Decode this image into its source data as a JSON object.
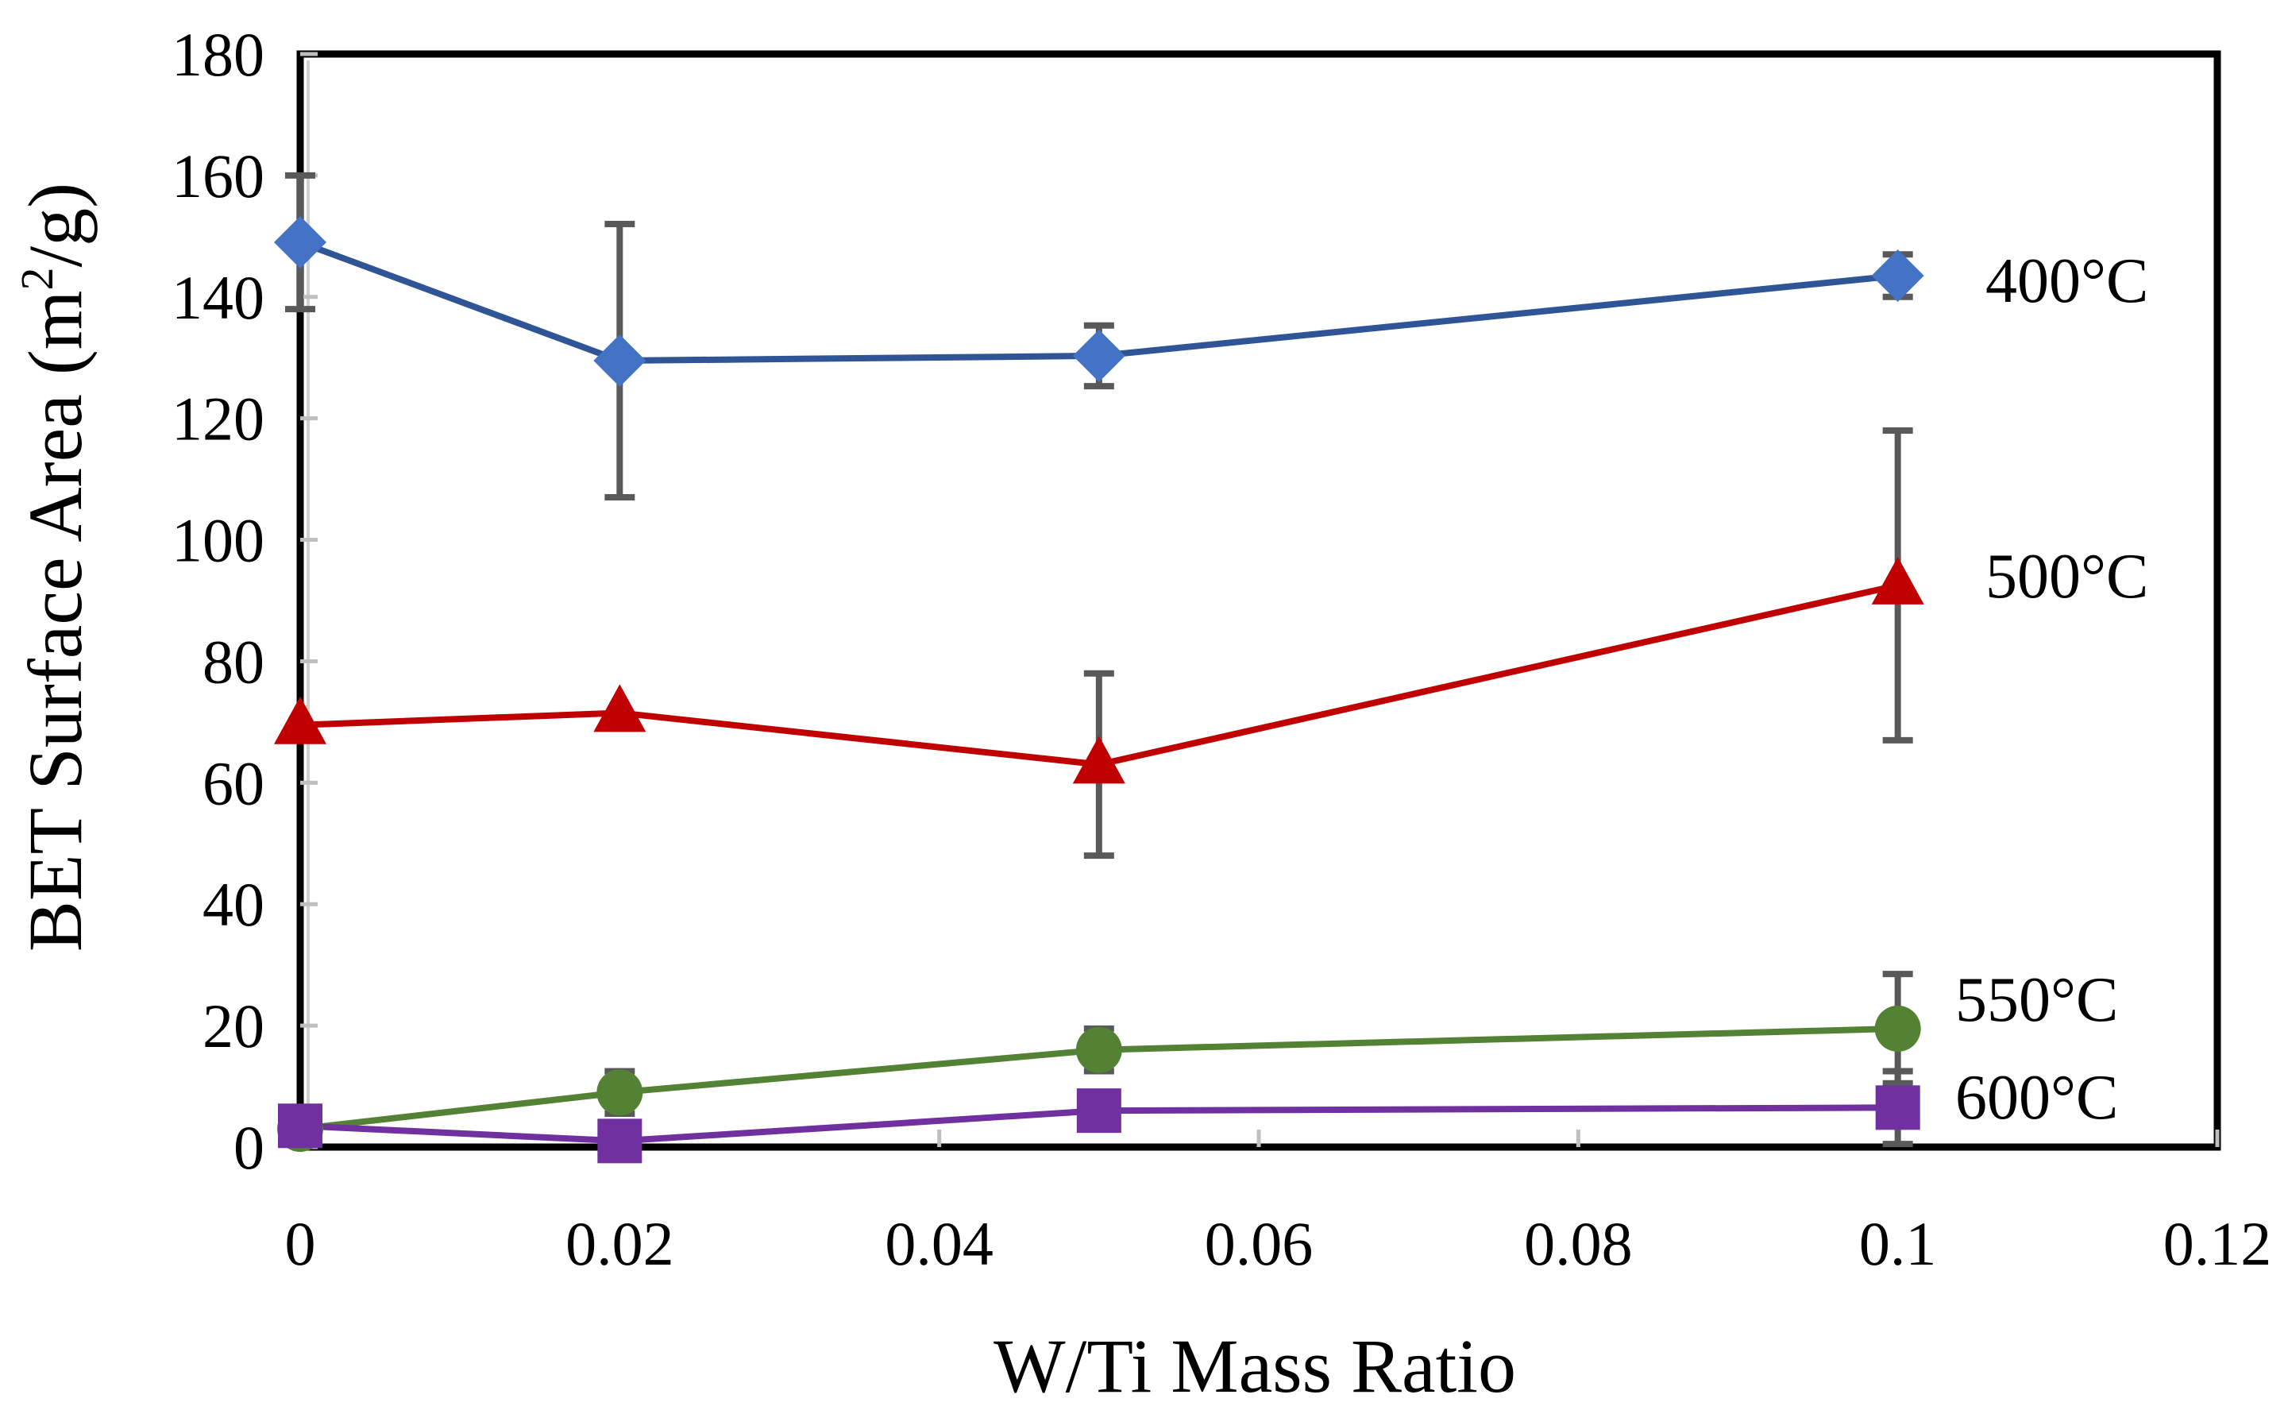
{
  "chart_data": {
    "type": "line",
    "title": "",
    "xlabel": "W/Ti Mass Ratio",
    "ylabel": {
      "main": "BET Surface Area (m",
      "superscript": "2",
      "tail": "/g)"
    },
    "xlim": [
      0,
      0.12
    ],
    "ylim": [
      0,
      180
    ],
    "x_ticks": [
      "0",
      "0.02",
      "0.04",
      "0.06",
      "0.08",
      "0.1",
      "0.12"
    ],
    "y_ticks": [
      "0",
      "20",
      "40",
      "60",
      "80",
      "100",
      "120",
      "140",
      "160",
      "180"
    ],
    "grid": false,
    "series": [
      {
        "name": "400°C",
        "color": "#4472c4",
        "line_color": "#2f5597",
        "marker": "diamond",
        "x": [
          0,
          0.02,
          0.05,
          0.1
        ],
        "y": [
          149,
          129.5,
          130.3,
          143.5
        ],
        "error": [
          11,
          22.5,
          5,
          3.5
        ]
      },
      {
        "name": "500°C",
        "color": "#c00000",
        "line_color": "#c00000",
        "marker": "triangle",
        "x": [
          0,
          0.02,
          0.05,
          0.1
        ],
        "y": [
          69.5,
          71.5,
          63,
          92.5
        ],
        "error": [
          0,
          0,
          15,
          25.5
        ]
      },
      {
        "name": "550°C",
        "color": "#548235",
        "line_color": "#548235",
        "marker": "circle",
        "x": [
          0,
          0.02,
          0.05,
          0.1
        ],
        "y": [
          3,
          9,
          16,
          19.5
        ],
        "error": [
          0,
          3.5,
          3.5,
          9
        ]
      },
      {
        "name": "600°C",
        "color": "#7030a0",
        "line_color": "#7030a0",
        "marker": "square",
        "x": [
          0,
          0.02,
          0.05,
          0.1
        ],
        "y": [
          3.5,
          1,
          6,
          6.5
        ],
        "error": [
          0,
          0,
          0,
          6
        ]
      }
    ],
    "error_bar_color": "#595959",
    "frame_color": "#000000"
  }
}
